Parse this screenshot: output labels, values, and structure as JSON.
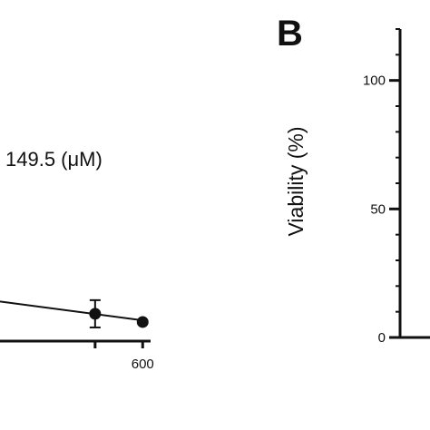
{
  "chart_data": [
    {
      "type": "scatter",
      "panel": "A",
      "annotation": "149.5 (μM)",
      "x_ticks": [
        600
      ],
      "x_tick_labels": [
        "600"
      ],
      "xlim": [
        -300,
        650
      ],
      "series": [
        {
          "points": [
            {
              "x": 300,
              "y": 10,
              "err": 5
            },
            {
              "x": 600,
              "y": 7,
              "err": 0
            }
          ],
          "fit_line": {
            "x": [
              -300,
              600
            ],
            "y": [
              14.5,
              7.6
            ]
          }
        }
      ],
      "ylim": [
        0,
        115
      ]
    },
    {
      "type": "scatter",
      "panel": "B",
      "title": "B",
      "ylabel": "Viability (%)",
      "ylim": [
        0,
        120
      ],
      "y_ticks": [
        0,
        50,
        100
      ],
      "y_tick_labels": [
        "0",
        "50",
        "100"
      ],
      "series": []
    }
  ]
}
